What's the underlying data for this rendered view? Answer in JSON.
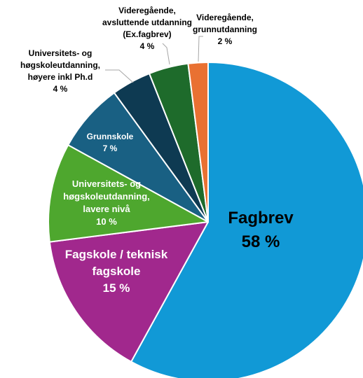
{
  "chart_data": {
    "type": "pie",
    "title": "",
    "start_angle_deg": 0,
    "direction": "clockwise",
    "legend": "none",
    "slices": [
      {
        "label": "Fagbrev",
        "value_text": "58 %",
        "value": 58,
        "color": "#1199D6",
        "label_color": "#000000"
      },
      {
        "label": "Fagskole / teknisk fagskole",
        "value_text": "15 %",
        "value": 15,
        "color": "#A1288D",
        "label_color": "#FFFFFF"
      },
      {
        "label": "Universitets- og høgskoleutdanning, lavere nivå",
        "value_text": "10 %",
        "value": 10,
        "color": "#4EA72E",
        "label_color": "#FFFFFF"
      },
      {
        "label": "Grunnskole",
        "value_text": "7 %",
        "value": 7,
        "color": "#196083",
        "label_color": "#FFFFFF"
      },
      {
        "label": "Universitets- og høgskoleutdanning, høyere inkl Ph.d",
        "value_text": "4 %",
        "value": 4,
        "color": "#0E3A52",
        "label_color": "#000000"
      },
      {
        "label": "Videregående, avsluttende utdanning (Ex.fagbrev)",
        "value_text": "4 %",
        "value": 4,
        "color": "#1E6B2B",
        "label_color": "#000000"
      },
      {
        "label": "Videregående, grunnutdanning",
        "value_text": "2 %",
        "value": 2,
        "color": "#E97132",
        "label_color": "#000000"
      }
    ]
  }
}
